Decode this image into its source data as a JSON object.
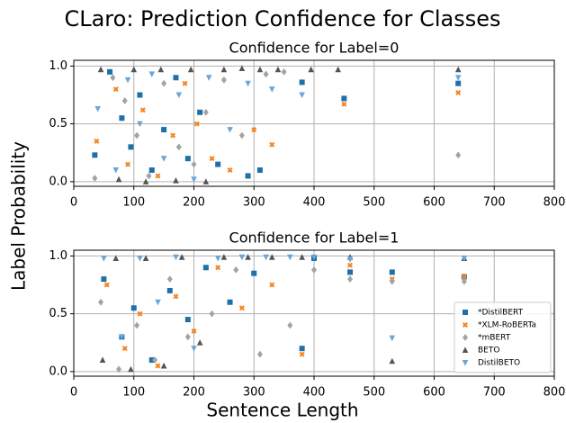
{
  "title": "CLaro: Prediction Confidence for Classes",
  "x_label": "Sentence Length",
  "y_label": "Label Probability",
  "chart_data": [
    {
      "type": "scatter",
      "title": "Confidence for Label=0",
      "xlim": [
        0,
        800
      ],
      "ylim": [
        -0.04,
        1.05
      ],
      "xticks": [
        0,
        100,
        200,
        300,
        400,
        500,
        600,
        700,
        800
      ],
      "yticks": [
        {
          "value": 0,
          "label": "0.0"
        },
        {
          "value": 0.5,
          "label": "0.5"
        },
        {
          "value": 1,
          "label": "1.0"
        }
      ],
      "grid": true,
      "legend": false,
      "series": [
        {
          "color": "#1f6fa8",
          "marker": "square",
          "x": [
            35,
            60,
            80,
            95,
            110,
            130,
            150,
            170,
            190,
            210,
            240,
            290,
            310,
            380,
            450,
            640
          ],
          "values": [
            0.23,
            0.95,
            0.55,
            0.3,
            0.75,
            0.1,
            0.45,
            0.9,
            0.2,
            0.6,
            0.15,
            0.05,
            0.1,
            0.86,
            0.72,
            0.85
          ]
        },
        {
          "color": "#f5841f",
          "marker": "x",
          "x": [
            38,
            70,
            90,
            115,
            140,
            165,
            185,
            205,
            230,
            260,
            300,
            330,
            450,
            640
          ],
          "values": [
            0.35,
            0.8,
            0.15,
            0.62,
            0.05,
            0.4,
            0.85,
            0.5,
            0.2,
            0.1,
            0.45,
            0.32,
            0.67,
            0.77
          ]
        },
        {
          "color": "#a3a3a3",
          "marker": "diamond",
          "x": [
            35,
            65,
            85,
            105,
            125,
            150,
            175,
            200,
            220,
            250,
            280,
            320,
            350,
            640
          ],
          "values": [
            0.03,
            0.9,
            0.7,
            0.4,
            0.05,
            0.85,
            0.3,
            0.15,
            0.6,
            0.88,
            0.4,
            0.93,
            0.95,
            0.23
          ]
        },
        {
          "color": "#555555",
          "marker": "triangle-up",
          "x": [
            45,
            75,
            100,
            120,
            145,
            170,
            195,
            220,
            250,
            280,
            310,
            340,
            395,
            440,
            640
          ],
          "values": [
            0.97,
            0.02,
            0.97,
            0.0,
            0.97,
            0.01,
            0.97,
            0.0,
            0.97,
            0.98,
            0.97,
            0.97,
            0.97,
            0.97,
            0.97
          ]
        },
        {
          "color": "#6aa6d8",
          "marker": "triangle-down",
          "x": [
            40,
            70,
            90,
            110,
            130,
            150,
            175,
            200,
            225,
            260,
            290,
            330,
            380,
            640
          ],
          "values": [
            0.63,
            0.1,
            0.88,
            0.5,
            0.93,
            0.2,
            0.75,
            0.02,
            0.9,
            0.45,
            0.85,
            0.8,
            0.75,
            0.9
          ]
        }
      ]
    },
    {
      "type": "scatter",
      "title": "Confidence for Label=1",
      "xlim": [
        0,
        800
      ],
      "ylim": [
        -0.04,
        1.05
      ],
      "xticks": [
        0,
        100,
        200,
        300,
        400,
        500,
        600,
        700,
        800
      ],
      "yticks": [
        {
          "value": 0,
          "label": "0.0"
        },
        {
          "value": 0.5,
          "label": "0.5"
        },
        {
          "value": 1,
          "label": "1.0"
        }
      ],
      "grid": true,
      "legend": "lower right",
      "series": [
        {
          "name": "*DistilBERT",
          "color": "#1f6fa8",
          "marker": "square",
          "x": [
            50,
            80,
            100,
            130,
            160,
            190,
            220,
            260,
            300,
            380,
            400,
            460,
            530,
            650
          ],
          "values": [
            0.8,
            0.3,
            0.55,
            0.1,
            0.7,
            0.45,
            0.9,
            0.6,
            0.85,
            0.2,
            0.98,
            0.86,
            0.86,
            0.82
          ]
        },
        {
          "name": "*XLM-RoBERTa",
          "color": "#f5841f",
          "marker": "x",
          "x": [
            55,
            85,
            110,
            140,
            170,
            200,
            240,
            280,
            330,
            380,
            460,
            530,
            650
          ],
          "values": [
            0.75,
            0.2,
            0.5,
            0.05,
            0.65,
            0.35,
            0.9,
            0.55,
            0.75,
            0.15,
            0.92,
            0.8,
            0.82
          ]
        },
        {
          "name": "*mBERT",
          "color": "#a3a3a3",
          "marker": "diamond",
          "x": [
            45,
            75,
            105,
            135,
            160,
            190,
            230,
            270,
            310,
            360,
            400,
            460,
            530,
            650
          ],
          "values": [
            0.6,
            0.02,
            0.4,
            0.1,
            0.8,
            0.3,
            0.5,
            0.88,
            0.15,
            0.4,
            0.88,
            0.8,
            0.78,
            0.78
          ]
        },
        {
          "name": "BETO",
          "color": "#555555",
          "marker": "triangle-up",
          "x": [
            48,
            70,
            95,
            120,
            150,
            180,
            210,
            250,
            290,
            330,
            380,
            460,
            530,
            650
          ],
          "values": [
            0.1,
            0.98,
            0.02,
            0.98,
            0.05,
            0.99,
            0.25,
            0.99,
            0.99,
            0.99,
            0.99,
            0.99,
            0.09,
            0.98
          ]
        },
        {
          "name": "DistilBETO",
          "color": "#6aa6d8",
          "marker": "triangle-down",
          "x": [
            50,
            80,
            110,
            140,
            170,
            200,
            240,
            280,
            320,
            360,
            400,
            460,
            530,
            650
          ],
          "values": [
            0.98,
            0.3,
            0.98,
            0.6,
            0.99,
            0.2,
            0.98,
            0.99,
            0.99,
            0.99,
            0.99,
            0.97,
            0.29,
            0.98
          ]
        }
      ]
    }
  ]
}
